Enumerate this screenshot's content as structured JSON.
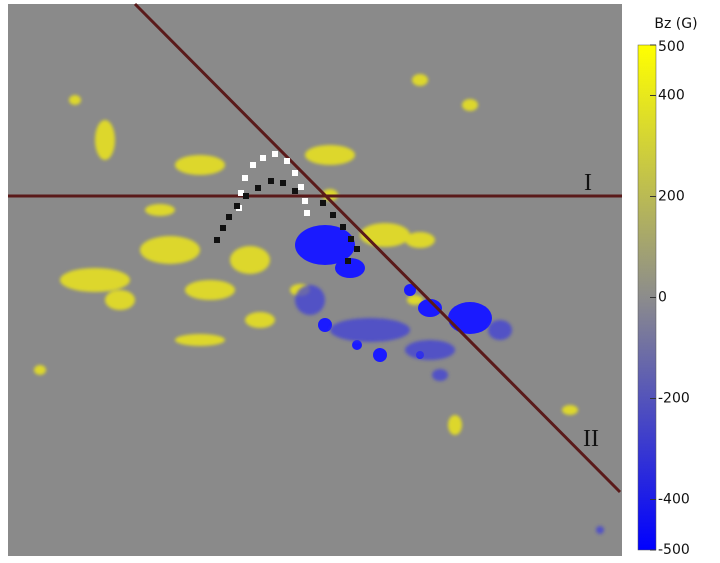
{
  "colorbar": {
    "title": "Bz (G)",
    "lim": [
      -500,
      500
    ],
    "ticks": [
      500,
      400,
      200,
      0,
      -200,
      -400,
      -500
    ]
  },
  "lines": {
    "first": "I",
    "second": "II"
  }
}
